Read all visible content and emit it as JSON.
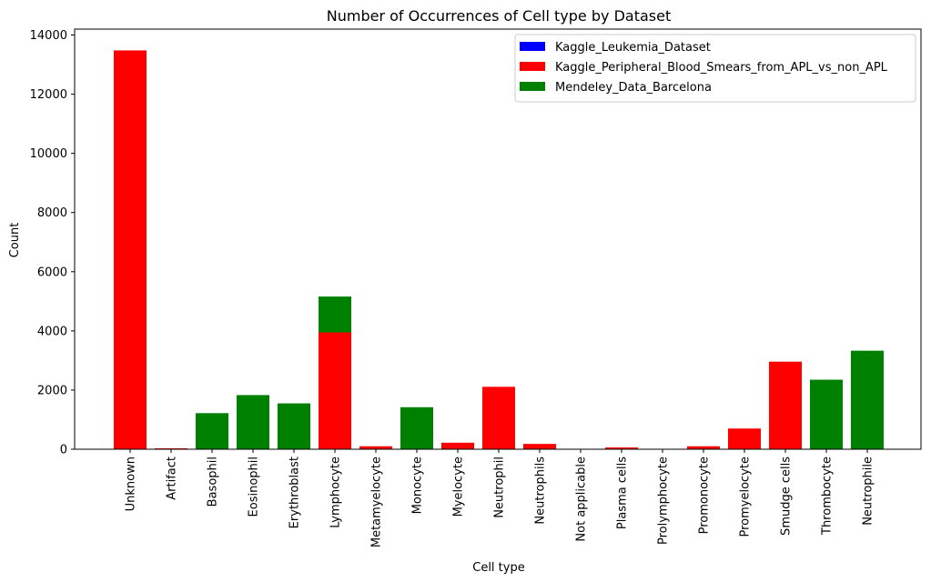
{
  "chart_data": {
    "type": "bar",
    "stacked": true,
    "title": "Number of Occurrences of Cell type by Dataset",
    "xlabel": "Cell type",
    "ylabel": "Count",
    "ylim": [
      0,
      14200
    ],
    "yticks": [
      0,
      2000,
      4000,
      6000,
      8000,
      10000,
      12000,
      14000
    ],
    "ytick_labels": [
      "0",
      "2000",
      "4000",
      "6000",
      "8000",
      "10000",
      "12000",
      "14000"
    ],
    "grid": false,
    "legend_position": "top-right",
    "categories": [
      "Unknown",
      "Artifact",
      "Basophil",
      "Eosinophil",
      "Erythroblast",
      "Lymphocyte",
      "Metamyelocyte",
      "Monocyte",
      "Myelocyte",
      "Neutrophil",
      "Neutrophils",
      "Not applicable",
      "Plasma cells",
      "Prolymphocyte",
      "Promonocyte",
      "Promyelocyte",
      "Smudge cells",
      "Thrombocyte",
      "Neutrophile"
    ],
    "series": [
      {
        "name": "Kaggle_Leukemia_Dataset",
        "color": "#0000ff",
        "values": [
          0,
          0,
          0,
          0,
          0,
          0,
          0,
          0,
          0,
          0,
          0,
          0,
          0,
          0,
          0,
          0,
          0,
          0,
          0
        ]
      },
      {
        "name": "Kaggle_Peripheral_Blood_Smears_from_APL_vs_non_APL",
        "color": "#ff0000",
        "values": [
          13480,
          30,
          0,
          0,
          0,
          3950,
          100,
          0,
          220,
          2110,
          180,
          0,
          60,
          0,
          100,
          700,
          2960,
          0,
          0
        ]
      },
      {
        "name": "Mendeley_Data_Barcelona",
        "color": "#008000",
        "values": [
          0,
          0,
          1220,
          1830,
          1550,
          1210,
          0,
          1420,
          0,
          0,
          0,
          0,
          0,
          0,
          0,
          0,
          0,
          2350,
          3330
        ]
      }
    ]
  }
}
